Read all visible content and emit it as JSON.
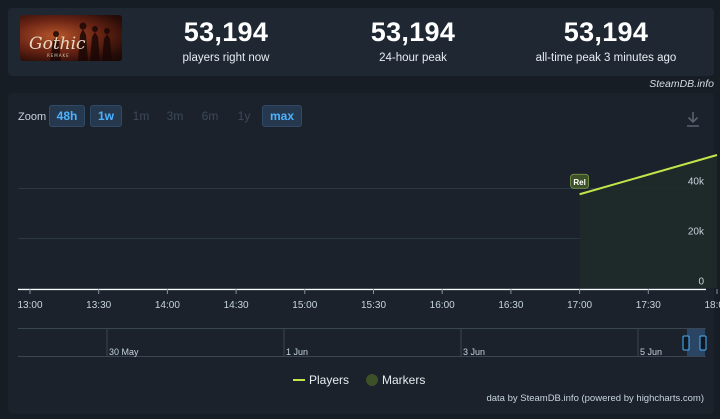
{
  "stats": {
    "current": {
      "value": "53,194",
      "label": "players right now"
    },
    "peak24": {
      "value": "53,194",
      "label": "24-hour peak"
    },
    "alltime": {
      "value": "53,194",
      "label": "all-time peak 3 minutes ago"
    }
  },
  "game_logo_text": "Gothic",
  "credit_top": "SteamDB.info",
  "zoom": {
    "label": "Zoom",
    "buttons": [
      {
        "label": "48h",
        "active": true
      },
      {
        "label": "1w",
        "active": true
      },
      {
        "label": "1m",
        "active": false
      },
      {
        "label": "3m",
        "active": false
      },
      {
        "label": "6m",
        "active": false
      },
      {
        "label": "1y",
        "active": false
      },
      {
        "label": "max",
        "active": true
      }
    ]
  },
  "chart_data": {
    "type": "line",
    "series": [
      {
        "name": "Players",
        "color": "#c2e54a",
        "points": [
          [
            "17:00",
            37500
          ],
          [
            "18:00",
            53194
          ]
        ]
      }
    ],
    "x_ticks": [
      "13:00",
      "13:30",
      "14:00",
      "14:30",
      "15:00",
      "15:30",
      "16:00",
      "16:30",
      "17:00",
      "17:30",
      "18:00"
    ],
    "y_ticks": [
      "0",
      "20k",
      "40k"
    ],
    "ylim": [
      0,
      60000
    ],
    "marker": {
      "label": "Rel",
      "at": "17:00",
      "color": "#3d5128"
    },
    "navigator_labels": [
      "30 May",
      "1 Jun",
      "3 Jun",
      "5 Jun"
    ],
    "grid": true,
    "legend": [
      "Players",
      "Markers"
    ],
    "legend_position": "bottom-center"
  },
  "legend": {
    "players": "Players",
    "markers": "Markers"
  },
  "credit_bottom": "data by SteamDB.info (powered by highcharts.com)"
}
